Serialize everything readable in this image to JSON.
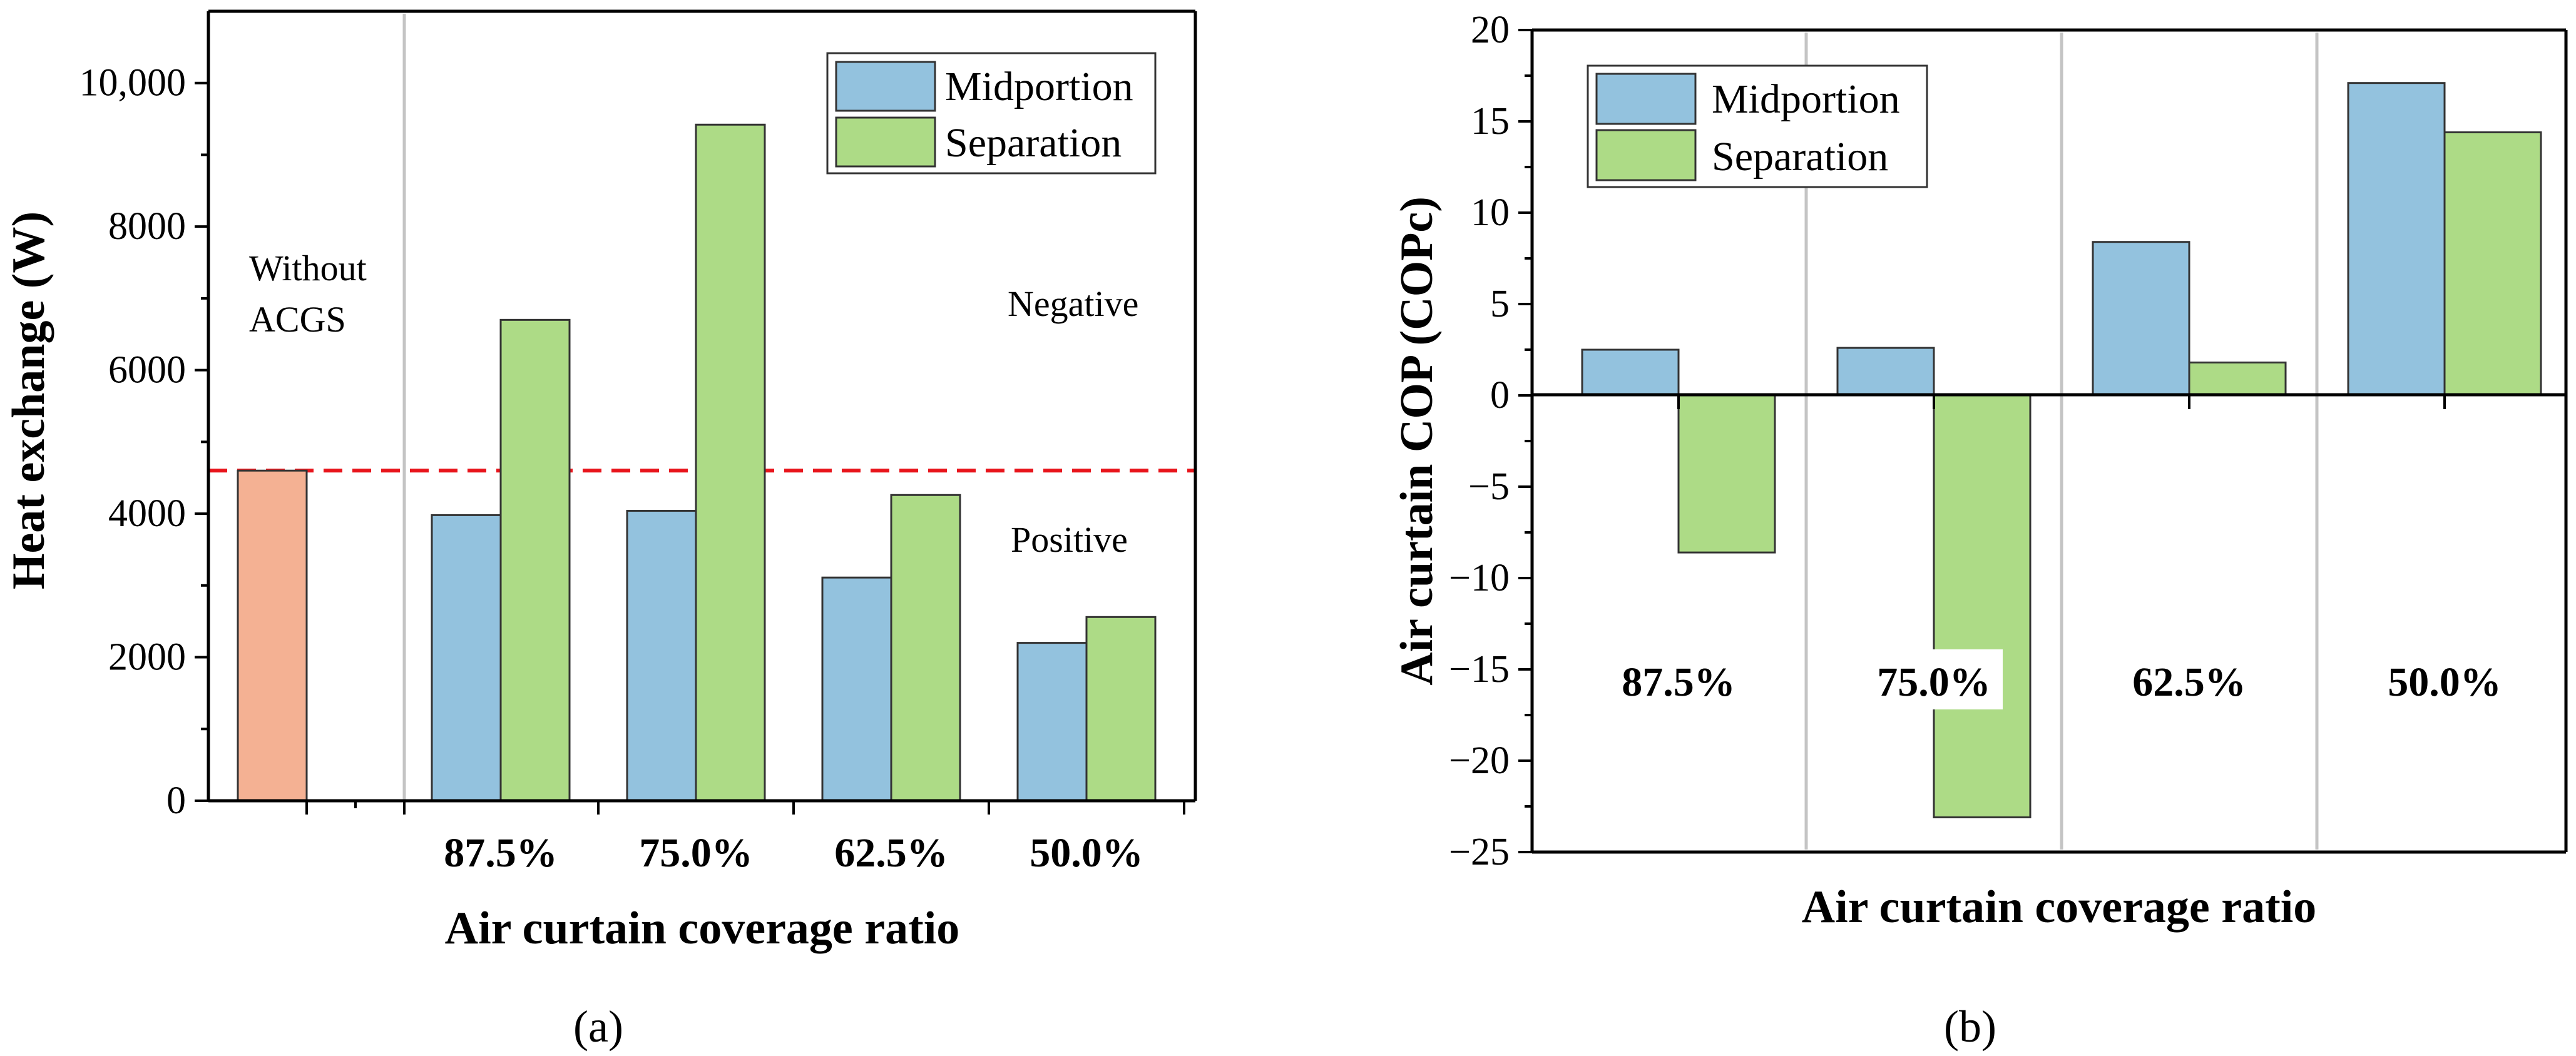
{
  "chart_data": [
    {
      "type": "bar",
      "panel": "(a)",
      "xlabel": "Air curtain coverage ratio",
      "ylabel": "Heat exchange (W)",
      "ylim": [
        0,
        11000
      ],
      "yticks": [
        0,
        2000,
        4000,
        6000,
        8000,
        10000
      ],
      "ytick_labels": [
        "0",
        "2000",
        "4000",
        "6000",
        "8000",
        "10,000"
      ],
      "categories": [
        "87.5%",
        "75.0%",
        "62.5%",
        "50.0%"
      ],
      "series": [
        {
          "name": "Midportion",
          "color": "#93c2de",
          "values": [
            3980,
            4040,
            3110,
            2200
          ]
        },
        {
          "name": "Separation",
          "color": "#addb86",
          "values": [
            6700,
            9420,
            4260,
            2560
          ]
        }
      ],
      "baseline": {
        "label_line1": "Without",
        "label_line2": "ACGS",
        "value": 4600,
        "color": "#f4b193"
      },
      "reference_line": {
        "value": 4600,
        "color": "#e8141b",
        "style": "dashed"
      },
      "annotations": {
        "above": "Negative",
        "below": "Positive"
      },
      "legend": "top-right"
    },
    {
      "type": "bar",
      "panel": "(b)",
      "xlabel": "Air curtain coverage ratio",
      "ylabel": "Air curtain COP (COPc)",
      "ylim": [
        -25,
        20
      ],
      "yticks": [
        -25,
        -20,
        -15,
        -10,
        -5,
        0,
        5,
        10,
        15,
        20
      ],
      "ytick_labels": [
        "−25",
        "−20",
        "−15",
        "−10",
        "−5",
        "0",
        "5",
        "10",
        "15",
        "20"
      ],
      "categories": [
        "87.5%",
        "75.0%",
        "62.5%",
        "50.0%"
      ],
      "series": [
        {
          "name": "Midportion",
          "color": "#93c2de",
          "values": [
            2.5,
            2.6,
            8.4,
            17.1
          ]
        },
        {
          "name": "Separation",
          "color": "#addb86",
          "values": [
            -8.6,
            -23.1,
            1.8,
            14.4
          ]
        }
      ],
      "legend": "top-left"
    }
  ]
}
